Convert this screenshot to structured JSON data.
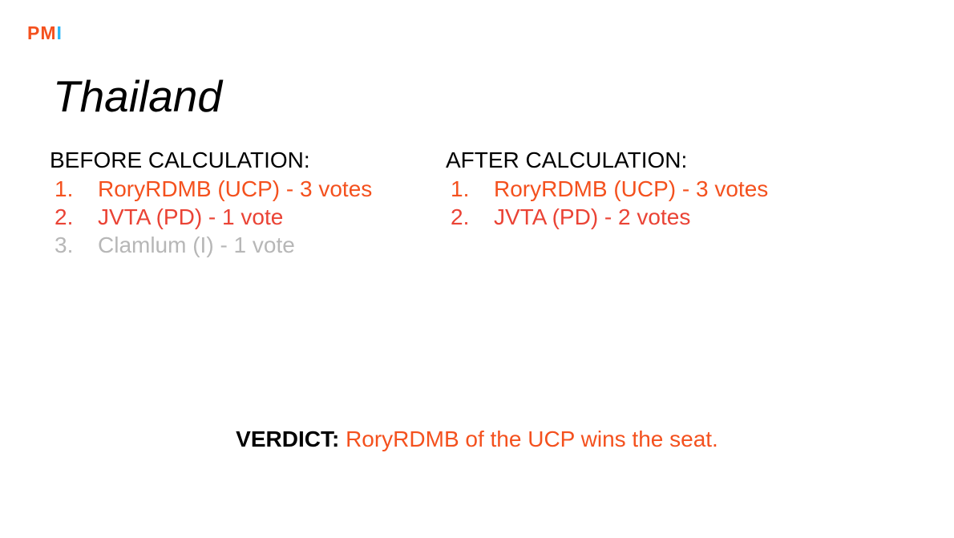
{
  "logo": {
    "p": "P",
    "m": "M",
    "i": "I"
  },
  "title": "Thailand",
  "before": {
    "heading": "BEFORE CALCULATION:",
    "items": [
      {
        "num": "1.",
        "text": "RoryRDMB (UCP) - 3 votes",
        "color": "#f4511e"
      },
      {
        "num": "2.",
        "text": "JVTA (PD) - 1 vote",
        "color": "#ea4335"
      },
      {
        "num": "3.",
        "text": "Clamlum (I) - 1 vote",
        "color": "#b7b7b7"
      }
    ]
  },
  "after": {
    "heading": "AFTER CALCULATION:",
    "items": [
      {
        "num": "1.",
        "text": "RoryRDMB (UCP) - 3 votes",
        "color": "#f4511e"
      },
      {
        "num": "2.",
        "text": "JVTA (PD) - 2 votes",
        "color": "#ea4335"
      }
    ]
  },
  "verdict": {
    "label": "VERDICT:",
    "text": "RoryRDMB of the UCP wins the seat."
  },
  "colors": {
    "accent_orange": "#f4511e",
    "accent_red": "#ea4335",
    "muted_grey": "#b7b7b7",
    "logo_blue": "#29b6f6"
  }
}
